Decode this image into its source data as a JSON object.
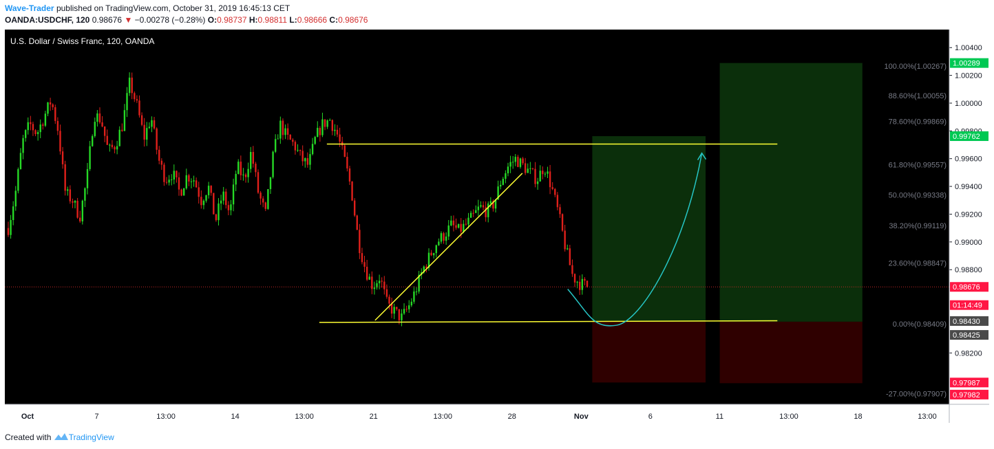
{
  "header": {
    "author": "Wave-Trader",
    "published_text": "published on TradingView.com, October 31, 2019 16:45:13 CET",
    "symbol": "OANDA:USDCHF, 120",
    "last": "0.98676",
    "change_arrow": "▼",
    "change": "−0.00278 (−0.28%)",
    "o_label": "O:",
    "o": "0.98737",
    "h_label": "H:",
    "h": "0.98811",
    "l_label": "L:",
    "l": "0.98666",
    "c_label": "C:",
    "c": "0.98676"
  },
  "footer": {
    "created_with": "Created with",
    "brand": "TradingView"
  },
  "colors": {
    "background": "#000000",
    "up": "#26d926",
    "down": "#e0201b",
    "pattern_lines": "#ffff33",
    "arrow": "#26c6c6",
    "target_zone": "#0b2f0b",
    "stop_zone": "#2f0000",
    "fib_label": "#787b86",
    "current_price_line": "#c62828"
  },
  "chart_data": {
    "type": "candlestick",
    "title": "U.S. Dollar / Swiss Franc, 120, OANDA",
    "ylim": [
      0.9783,
      1.0053
    ],
    "x_ticks": [
      "Oct",
      "7",
      "13:00",
      "14",
      "13:00",
      "21",
      "13:00",
      "28",
      "Nov",
      "6",
      "11",
      "13:00",
      "18",
      "13:00"
    ],
    "y_ticks": [
      "1.00400",
      "1.00200",
      "1.00000",
      "0.99800",
      "0.99600",
      "0.99400",
      "0.99200",
      "0.99000",
      "0.98800",
      "0.98200"
    ],
    "price_path": [
      0.991,
      0.9935,
      0.9972,
      0.9985,
      0.9978,
      0.999,
      1.0002,
      0.998,
      0.9935,
      0.993,
      0.9918,
      0.9945,
      0.9992,
      0.9988,
      0.9965,
      0.997,
      0.9985,
      1.0015,
      0.9998,
      0.9975,
      0.999,
      0.996,
      0.9945,
      0.995,
      0.9935,
      0.9948,
      0.9945,
      0.993,
      0.994,
      0.9915,
      0.9935,
      0.992,
      0.9955,
      0.9945,
      0.9965,
      0.9935,
      0.992,
      0.996,
      0.9985,
      0.9975,
      0.997,
      0.996,
      0.9955,
      0.9975,
      0.9985,
      0.9988,
      0.9978,
      0.996,
      0.9938,
      0.99,
      0.988,
      0.9868,
      0.9875,
      0.9855,
      0.985,
      0.9845,
      0.9853,
      0.9865,
      0.988,
      0.989,
      0.99,
      0.9905,
      0.9912,
      0.9908,
      0.9912,
      0.9918,
      0.9925,
      0.9922,
      0.9928,
      0.9945,
      0.9955,
      0.996,
      0.9955,
      0.995,
      0.9945,
      0.9955,
      0.994,
      0.992,
      0.9895,
      0.9875,
      0.987,
      0.9868
    ],
    "candles_shown": 235,
    "series": [
      {
        "kind": "horizontal",
        "x": [
          0.341,
          0.818
        ],
        "y": [
          0.99705,
          0.99705
        ],
        "color": "#ffff33"
      },
      {
        "kind": "horizontal",
        "x": [
          0.333,
          0.818
        ],
        "y": [
          0.9842,
          0.98432
        ],
        "color": "#ffff33"
      },
      {
        "kind": "trendline",
        "x": [
          0.392,
          0.548
        ],
        "y": [
          0.98435,
          0.99495
        ],
        "color": "#ffff33"
      },
      {
        "kind": "arrow",
        "from": [
          0.596,
          0.9866
        ],
        "via": [
          0.648,
          0.984
        ],
        "to": [
          0.738,
          0.9964
        ],
        "color": "#26c6c6"
      }
    ],
    "zones": [
      {
        "name": "target",
        "x": [
          0.622,
          0.742
        ],
        "y": [
          0.98425,
          0.99762
        ],
        "color": "#0b2f0b"
      },
      {
        "name": "stop",
        "x": [
          0.622,
          0.742
        ],
        "y": [
          0.97987,
          0.98425
        ],
        "color": "#2f0000"
      },
      {
        "name": "target",
        "x": [
          0.757,
          0.908
        ],
        "y": [
          0.98425,
          1.00289
        ],
        "color": "#0b2f0b"
      },
      {
        "name": "stop",
        "x": [
          0.757,
          0.908
        ],
        "y": [
          0.97982,
          0.98425
        ],
        "color": "#2f0000"
      }
    ],
    "fib_levels": [
      {
        "label": "100.00%(1.00267)",
        "price": 1.00267
      },
      {
        "label": "88.60%(1.00055)",
        "price": 1.00055
      },
      {
        "label": "78.60%(0.99869)",
        "price": 0.99869
      },
      {
        "label": "61.80%(0.99557)",
        "price": 0.99557
      },
      {
        "label": "50.00%(0.99338)",
        "price": 0.99338
      },
      {
        "label": "38.20%(0.99119)",
        "price": 0.99119
      },
      {
        "label": "23.60%(0.98847)",
        "price": 0.98847
      },
      {
        "label": "0.00%(0.98409)",
        "price": 0.98409
      },
      {
        "label": "-27.00%(0.97907)",
        "price": 0.97907
      }
    ],
    "price_badges": [
      {
        "text": "1.00289",
        "price": 1.00289,
        "color": "#00c853"
      },
      {
        "text": "0.99762",
        "price": 0.99762,
        "color": "#00c853"
      },
      {
        "text": "0.98676",
        "price": 0.98676,
        "color": "#ff1744"
      },
      {
        "text": "01:14:49",
        "price": 0.98545,
        "color": "#ff1744"
      },
      {
        "text": "0.98430",
        "price": 0.9843,
        "color": "#4a4a4a"
      },
      {
        "text": "0.98425",
        "price": 0.9833,
        "color": "#4a4a4a"
      },
      {
        "text": "0.97987",
        "price": 0.97987,
        "color": "#ff1744"
      },
      {
        "text": "0.97982",
        "price": 0.979,
        "color": "#ff1744"
      }
    ],
    "current_price": 0.98676
  }
}
